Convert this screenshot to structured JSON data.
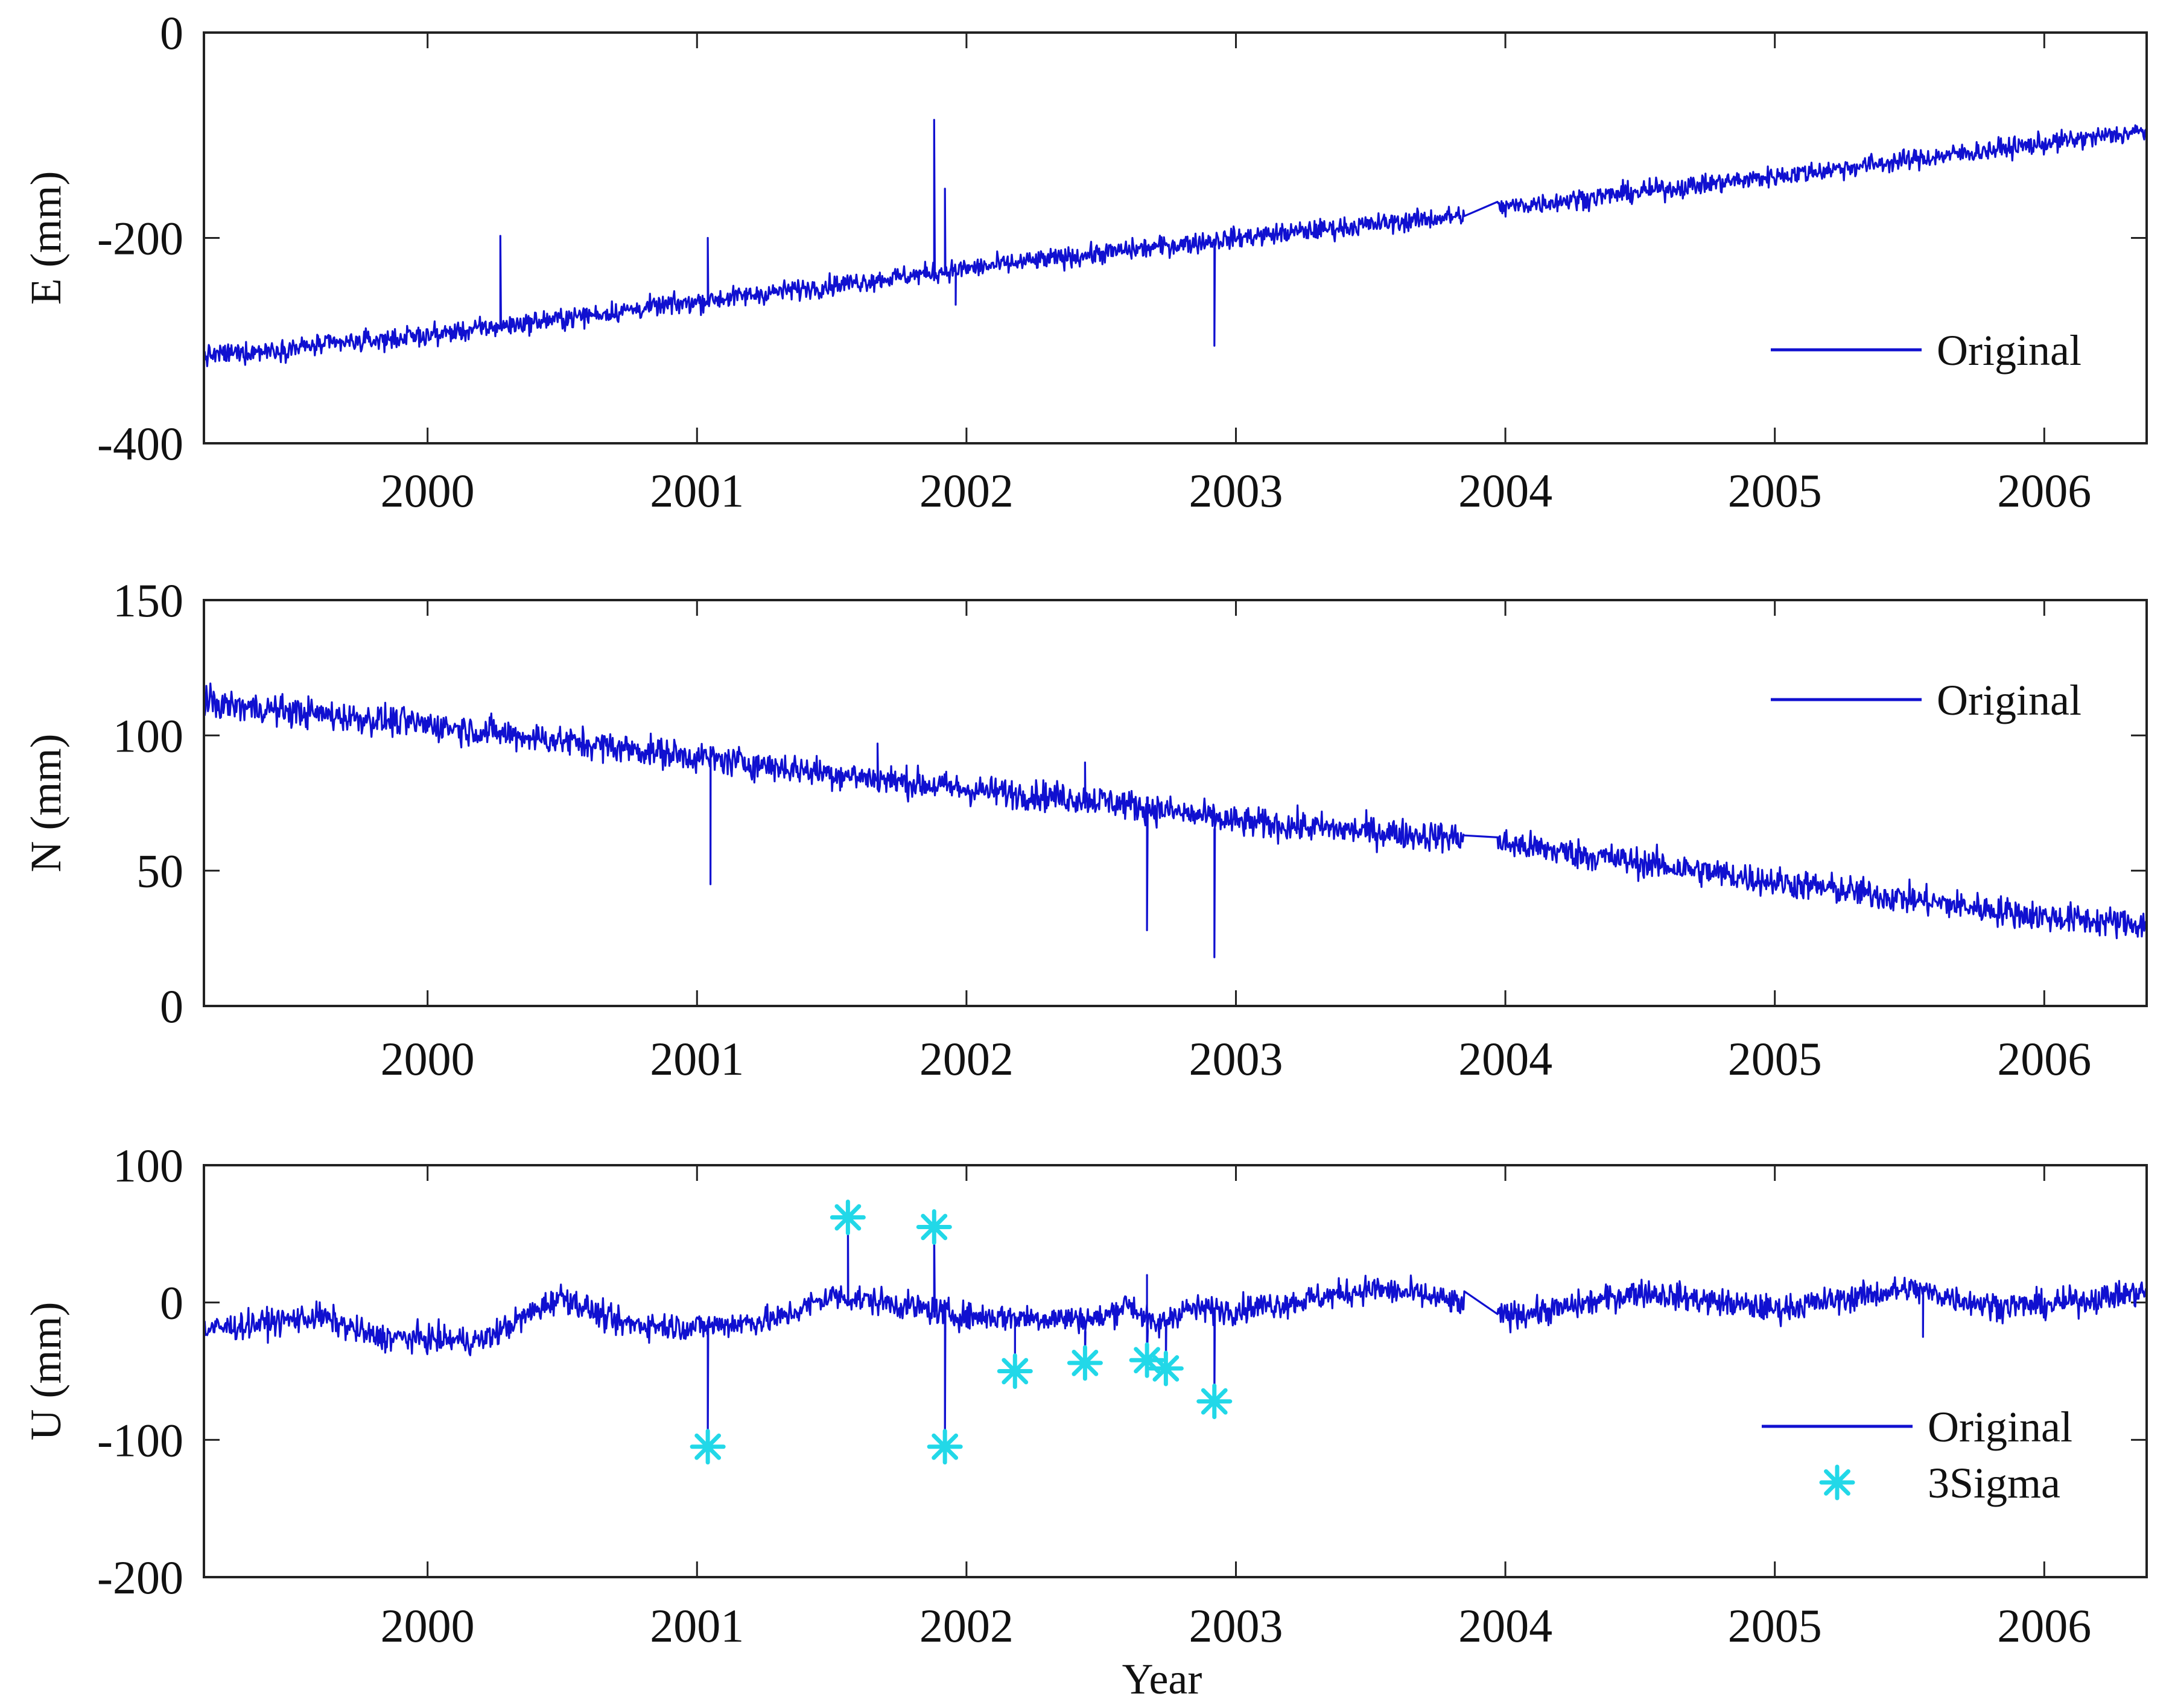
{
  "figure": {
    "xlabel": "Year",
    "x_ticks": [
      2000,
      2001,
      2002,
      2003,
      2004,
      2005,
      2006
    ],
    "xlim": [
      1999.17,
      2006.38
    ]
  },
  "chart_data": [
    {
      "type": "line",
      "id": "E",
      "ylabel": "E (mm)",
      "ylim": [
        -400,
        0
      ],
      "y_ticks": [
        0,
        -200,
        -400
      ],
      "legend": {
        "placement": "lower-right",
        "entries": [
          "Original"
        ]
      },
      "series": [
        {
          "name": "Original",
          "color": "#1010d0",
          "trend": [
            [
              1999.17,
              -315
            ],
            [
              2000.0,
              -295
            ],
            [
              2001.0,
              -262
            ],
            [
              2002.0,
              -230
            ],
            [
              2003.0,
              -200
            ],
            [
              2003.85,
              -178
            ],
            [
              2004.0,
              -170
            ],
            [
              2005.0,
              -140
            ],
            [
              2006.0,
              -108
            ],
            [
              2006.38,
              -96
            ]
          ],
          "noise_mm": 5,
          "gaps": [
            [
              2003.85,
              2003.97
            ]
          ],
          "spikes": [
            [
              2000.27,
              -198
            ],
            [
              2001.04,
              -200
            ],
            [
              2001.88,
              -85
            ],
            [
              2001.92,
              -152
            ],
            [
              2001.96,
              -265
            ],
            [
              2002.92,
              -305
            ]
          ]
        }
      ]
    },
    {
      "type": "line",
      "id": "N",
      "ylabel": "N (mm)",
      "ylim": [
        0,
        150
      ],
      "y_ticks": [
        150,
        100,
        50,
        0
      ],
      "legend": {
        "placement": "upper-right",
        "entries": [
          "Original"
        ]
      },
      "series": [
        {
          "name": "Original",
          "color": "#1010d0",
          "trend": [
            [
              1999.17,
              112
            ],
            [
              2000.0,
              104
            ],
            [
              2001.0,
              92
            ],
            [
              2002.0,
              80
            ],
            [
              2002.5,
              76
            ],
            [
              2003.0,
              68
            ],
            [
              2003.85,
              62
            ],
            [
              2004.0,
              60
            ],
            [
              2005.0,
              46
            ],
            [
              2006.0,
              33
            ],
            [
              2006.38,
              30
            ]
          ],
          "noise_mm": 2.8,
          "gaps": [
            [
              2003.85,
              2003.97
            ]
          ],
          "spikes": [
            [
              2001.05,
              45
            ],
            [
              2002.67,
              28
            ],
            [
              2002.92,
              18
            ],
            [
              2002.44,
              90
            ],
            [
              2001.67,
              97
            ]
          ]
        }
      ]
    },
    {
      "type": "line",
      "id": "U",
      "ylabel": "U (mm)",
      "ylim": [
        -200,
        100
      ],
      "y_ticks": [
        100,
        0,
        -100,
        -200
      ],
      "legend": {
        "placement": "lower-right",
        "entries": [
          "Original",
          "3Sigma"
        ]
      },
      "series": [
        {
          "name": "Original",
          "color": "#1010d0",
          "trend": [
            [
              1999.17,
              -20
            ],
            [
              1999.6,
              -10
            ],
            [
              1999.8,
              -25
            ],
            [
              2000.2,
              -28
            ],
            [
              2000.5,
              5
            ],
            [
              2000.7,
              -15
            ],
            [
              2001.0,
              -18
            ],
            [
              2001.3,
              -12
            ],
            [
              2001.5,
              5
            ],
            [
              2001.7,
              0
            ],
            [
              2002.0,
              -10
            ],
            [
              2002.5,
              -12
            ],
            [
              2002.6,
              0
            ],
            [
              2002.7,
              -18
            ],
            [
              2002.8,
              -5
            ],
            [
              2003.0,
              -5
            ],
            [
              2003.2,
              0
            ],
            [
              2003.5,
              10
            ],
            [
              2003.7,
              5
            ],
            [
              2003.85,
              -2
            ],
            [
              2003.97,
              -10
            ],
            [
              2004.2,
              -5
            ],
            [
              2004.5,
              8
            ],
            [
              2004.8,
              0
            ],
            [
              2005.0,
              -5
            ],
            [
              2005.5,
              10
            ],
            [
              2005.8,
              -2
            ],
            [
              2006.0,
              -2
            ],
            [
              2006.38,
              8
            ]
          ],
          "noise_mm": 5,
          "gaps": [
            [
              2003.85,
              2003.97
            ]
          ],
          "spikes": [
            [
              2001.04,
              -105
            ],
            [
              2001.56,
              62
            ],
            [
              2001.88,
              55
            ],
            [
              2001.92,
              -105
            ],
            [
              2002.18,
              -50
            ],
            [
              2002.44,
              -44
            ],
            [
              2002.67,
              -42
            ],
            [
              2002.74,
              -48
            ],
            [
              2002.92,
              -72
            ],
            [
              2005.55,
              -25
            ],
            [
              2002.67,
              20
            ]
          ]
        },
        {
          "name": "3Sigma",
          "type": "scatter",
          "marker": "asterisk",
          "color": "#22d8e8",
          "x": [
            2001.04,
            2001.56,
            2001.88,
            2001.92,
            2002.18,
            2002.44,
            2002.67,
            2002.74,
            2002.92
          ],
          "y": [
            -105,
            62,
            55,
            -105,
            -50,
            -44,
            -42,
            -48,
            -72
          ]
        }
      ]
    }
  ]
}
